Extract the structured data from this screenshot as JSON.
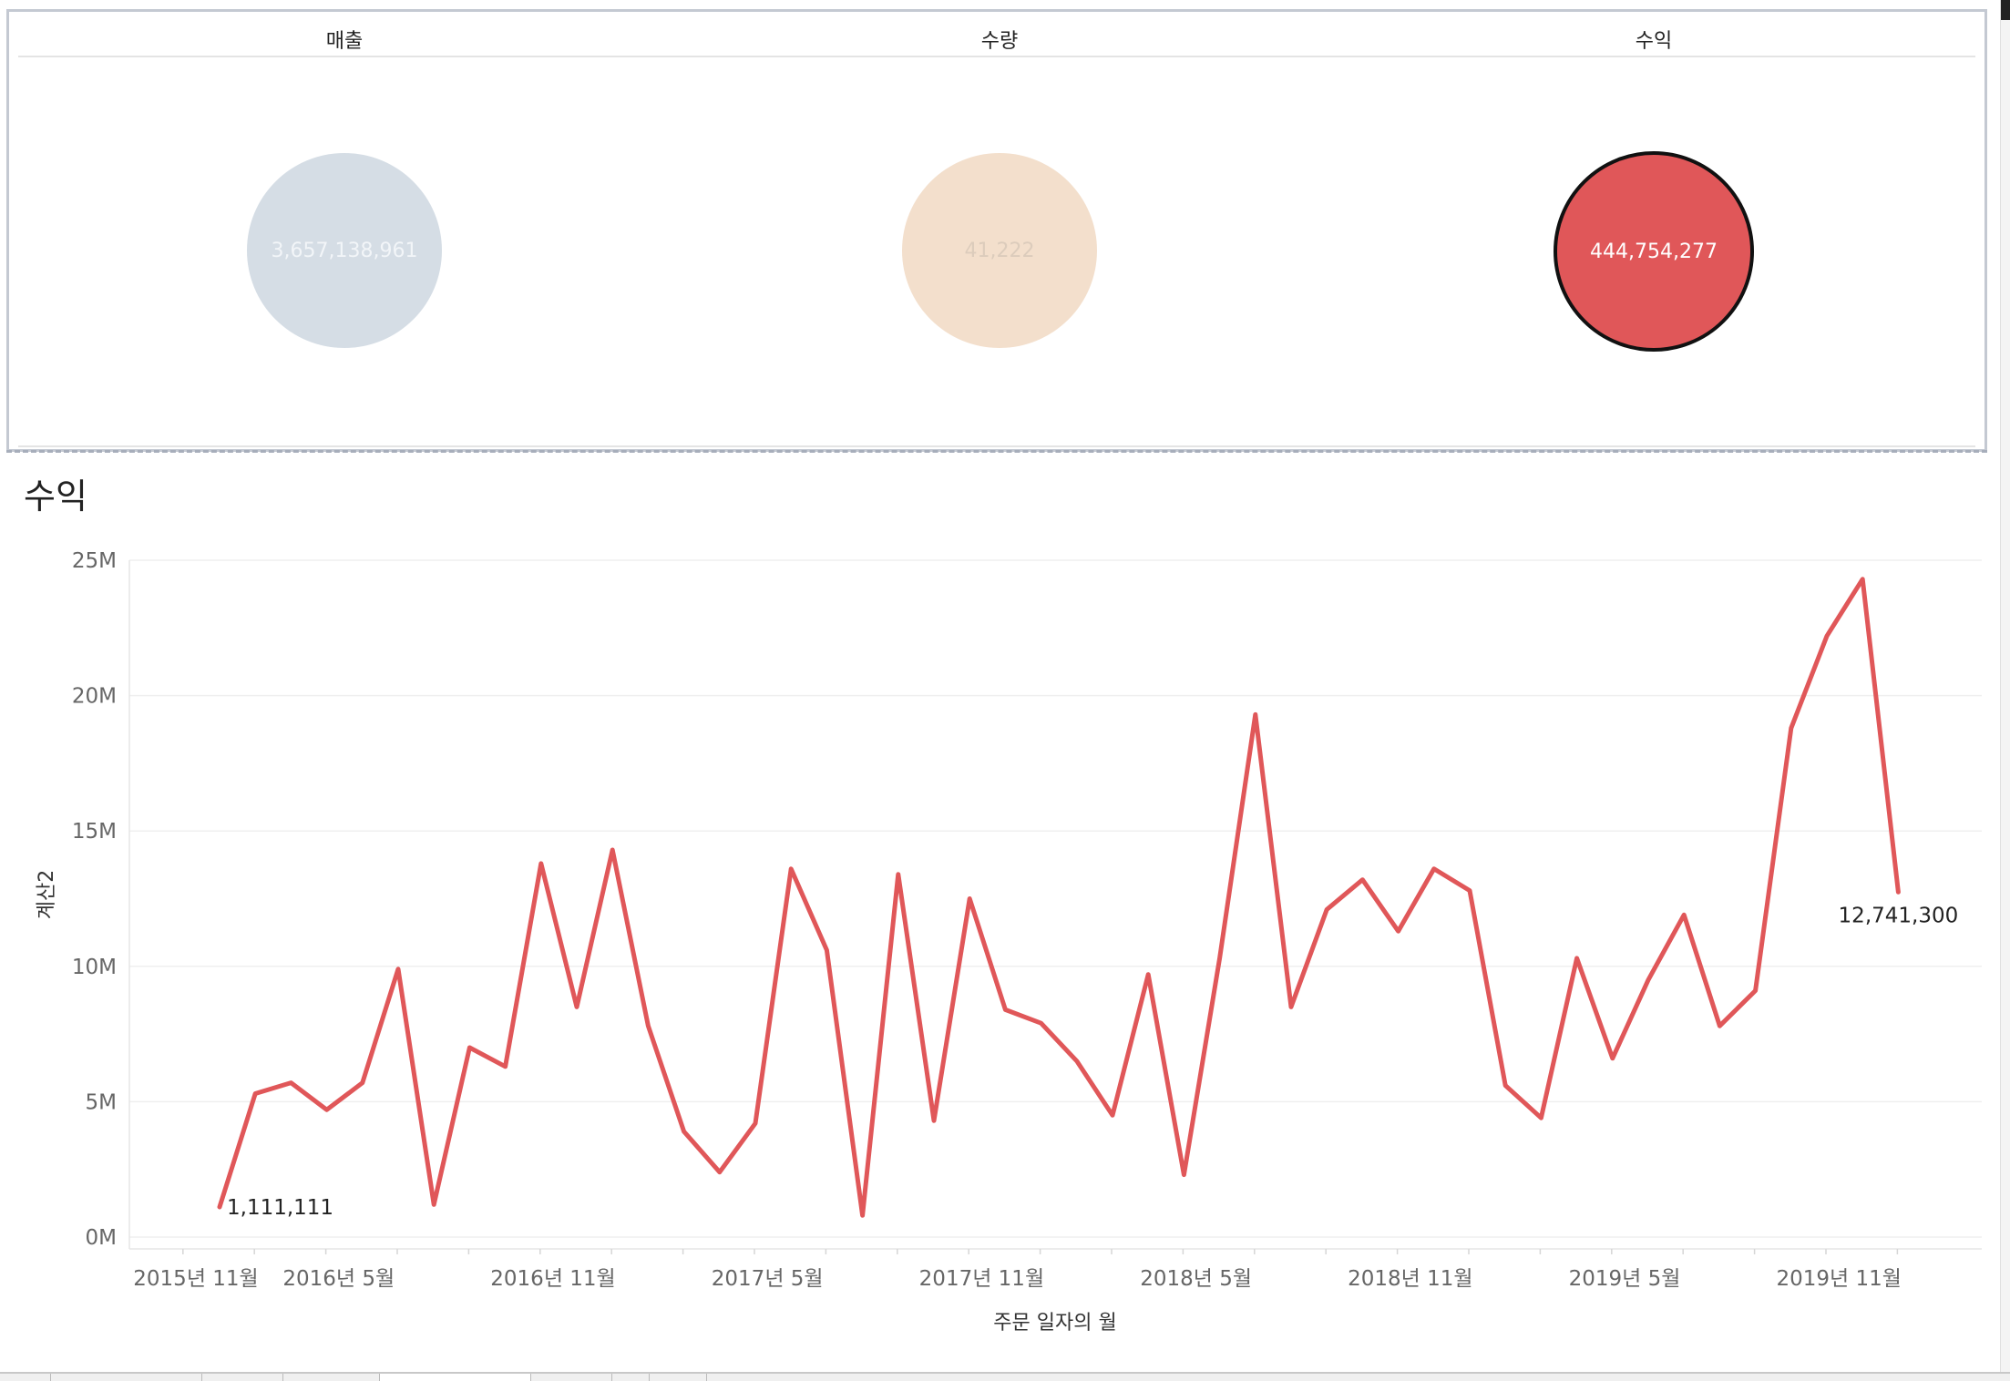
{
  "kpi": {
    "sales": {
      "title": "매출",
      "value": "3,657,138,961",
      "color": "#d5dde5"
    },
    "quantity": {
      "title": "수량",
      "value": "41,222",
      "color": "#f3dfcc"
    },
    "profit": {
      "title": "수익",
      "value": "444,754,277",
      "color": "#e05759"
    }
  },
  "section_title": "수익",
  "chart_data": {
    "type": "line",
    "title": "",
    "xlabel": "주문 일자의 월",
    "ylabel": "계산2",
    "ylim": [
      0,
      25000000
    ],
    "y_ticks": [
      {
        "value": 0,
        "label": "0M"
      },
      {
        "value": 5000000,
        "label": "5M"
      },
      {
        "value": 10000000,
        "label": "10M"
      },
      {
        "value": 15000000,
        "label": "15M"
      },
      {
        "value": 20000000,
        "label": "20M"
      },
      {
        "value": 25000000,
        "label": "25M"
      }
    ],
    "x_ticks": [
      {
        "index": 0,
        "label": "2015년 11월"
      },
      {
        "index": 4,
        "label": "2016년 5월"
      },
      {
        "index": 10,
        "label": "2016년 11월"
      },
      {
        "index": 16,
        "label": "2017년 5월"
      },
      {
        "index": 22,
        "label": "2017년 11월"
      },
      {
        "index": 28,
        "label": "2018년 5월"
      },
      {
        "index": 34,
        "label": "2018년 11월"
      },
      {
        "index": 40,
        "label": "2019년 5월"
      },
      {
        "index": 46,
        "label": "2019년 11월"
      }
    ],
    "color": "#e05759",
    "grid": true,
    "series": [
      {
        "values": [
          1111111,
          5300000,
          5700000,
          4700000,
          5700000,
          9900000,
          1200000,
          7000000,
          6300000,
          13800000,
          8500000,
          14300000,
          7800000,
          3900000,
          2400000,
          4200000,
          13600000,
          10600000,
          800000,
          13400000,
          4300000,
          12500000,
          8400000,
          7900000,
          6500000,
          4500000,
          9700000,
          2300000,
          10300000,
          19300000,
          8500000,
          12100000,
          13200000,
          11300000,
          13600000,
          12800000,
          5600000,
          4400000,
          10300000,
          6600000,
          9500000,
          11900000,
          7800000,
          9100000,
          18800000,
          22200000,
          24300000,
          12741300
        ]
      }
    ],
    "data_labels": [
      {
        "index": 0,
        "text": "1,111,111"
      },
      {
        "index": 47,
        "text": "12,741,300"
      }
    ]
  }
}
